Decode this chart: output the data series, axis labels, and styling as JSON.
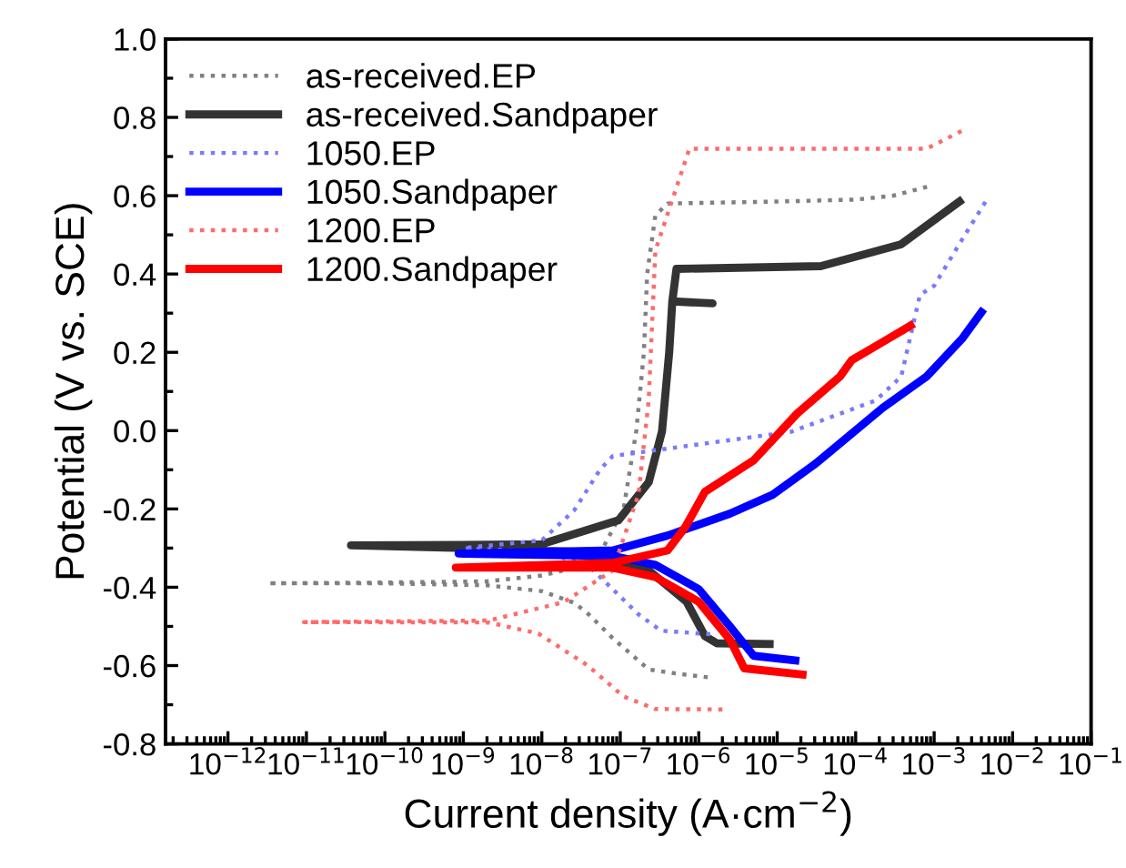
{
  "chart_data": {
    "type": "line",
    "xlabel": "Current density (A·cm$^{−2}$)",
    "ylabel": "Potential (V vs. SCE)",
    "log": "x",
    "xlim": [
      1.6e-13,
      0.1
    ],
    "ylim": [
      -0.8,
      1.0
    ],
    "xticks": [
      {
        "value": 1e-12,
        "label": "10$^{−12}$"
      },
      {
        "value": 1e-11,
        "label": "10$^{−11}$"
      },
      {
        "value": 1e-10,
        "label": "10$^{−10}$"
      },
      {
        "value": 1e-09,
        "label": "10$^{−9}$"
      },
      {
        "value": 1e-08,
        "label": "10$^{−8}$"
      },
      {
        "value": 1e-07,
        "label": "10$^{−7}$"
      },
      {
        "value": 1e-06,
        "label": "10$^{−6}$"
      },
      {
        "value": 1e-05,
        "label": "10$^{−5}$"
      },
      {
        "value": 0.0001,
        "label": "10$^{−4}$"
      },
      {
        "value": 0.001,
        "label": "10$^{−3}$"
      },
      {
        "value": 0.01,
        "label": "10$^{−2}$"
      },
      {
        "value": 0.1,
        "label": "10$^{−1}$"
      }
    ],
    "yticks": [
      {
        "value": -0.8,
        "label": "-0.8"
      },
      {
        "value": -0.6,
        "label": "-0.6"
      },
      {
        "value": -0.4,
        "label": "-0.4"
      },
      {
        "value": -0.2,
        "label": "-0.2"
      },
      {
        "value": 0.0,
        "label": "0.0"
      },
      {
        "value": 0.2,
        "label": "0.2"
      },
      {
        "value": 0.4,
        "label": "0.4"
      },
      {
        "value": 0.6,
        "label": "0.6"
      },
      {
        "value": 0.8,
        "label": "0.8"
      },
      {
        "value": 1.0,
        "label": "1.0"
      }
    ],
    "grid": false,
    "legend": "top left",
    "marker": "none",
    "series": [
      {
        "name": "as-received.EP",
        "color": "#808080",
        "line_style": "dotted",
        "x": [
          1.3e-06,
          5e-07,
          2.3e-07,
          8e-08,
          4e-08,
          2.6e-08,
          1e-08,
          2e-09,
          1e-10,
          3.2e-12,
          1e-10,
          2e-09,
          1e-08,
          2.6e-08,
          6e-08,
          1.1e-07,
          1.6e-07,
          2e-07,
          2.2e-07,
          2.8e-07,
          4e-07,
          1e-05,
          0.0001,
          0.0003,
          0.0009
        ],
        "values": [
          -0.63,
          -0.62,
          -0.61,
          -0.53,
          -0.47,
          -0.44,
          -0.41,
          -0.395,
          -0.39,
          -0.39,
          -0.388,
          -0.385,
          -0.37,
          -0.35,
          -0.3,
          -0.2,
          0.0,
          0.2,
          0.4,
          0.55,
          0.58,
          0.585,
          0.59,
          0.6,
          0.625
        ]
      },
      {
        "name": "as-received.Sandpaper",
        "color": "#333333",
        "line_style": "solid",
        "x": [
          8e-06,
          1.7e-06,
          1.2e-06,
          7e-07,
          2.3e-07,
          3e-08,
          1e-09,
          3.7e-11,
          1e-09,
          1e-08,
          9.5e-08,
          2.3e-07,
          3.4e-07,
          4.2e-07,
          4.6e-07,
          1.5e-06,
          4.6e-07,
          5.2e-07,
          3.6e-05,
          0.00038,
          0.0021
        ],
        "values": [
          -0.545,
          -0.543,
          -0.525,
          -0.437,
          -0.357,
          -0.31,
          -0.3,
          -0.293,
          -0.292,
          -0.29,
          -0.229,
          -0.132,
          -0.002,
          0.2,
          0.33,
          0.325,
          0.33,
          0.413,
          0.42,
          0.476,
          0.585
        ]
      },
      {
        "name": "1050.EP",
        "color": "#7a7aff",
        "line_style": "dotted",
        "x": [
          1.4e-06,
          3.3e-07,
          1.7e-07,
          8e-08,
          3.8e-08,
          1e-08,
          1e-09,
          1e-08,
          2.6e-08,
          5.5e-08,
          8e-08,
          1e-06,
          1.5e-05,
          0.00018,
          0.00038,
          0.00066,
          0.001,
          0.0023,
          0.0047
        ],
        "values": [
          -0.52,
          -0.511,
          -0.469,
          -0.405,
          -0.342,
          -0.31,
          -0.3,
          -0.28,
          -0.203,
          -0.1,
          -0.065,
          -0.035,
          -0.003,
          0.077,
          0.138,
          0.347,
          0.37,
          0.49,
          0.59
        ]
      },
      {
        "name": "1050.Sandpaper",
        "color": "#0000ff",
        "line_style": "solid",
        "x": [
          1.7e-05,
          5e-06,
          2.5e-06,
          1e-06,
          2.8e-07,
          8e-08,
          8.7e-10,
          8e-08,
          4e-07,
          2.5e-06,
          8.7e-06,
          3.1e-05,
          0.00022,
          0.0008,
          0.0023,
          0.004
        ],
        "values": [
          -0.587,
          -0.575,
          -0.5,
          -0.405,
          -0.343,
          -0.32,
          -0.314,
          -0.306,
          -0.268,
          -0.212,
          -0.164,
          -0.084,
          0.058,
          0.138,
          0.236,
          0.302
        ]
      },
      {
        "name": "1200.EP",
        "color": "#ff6b6b",
        "line_style": "dotted",
        "x": [
          2e-06,
          2.8e-07,
          1.1e-07,
          3.8e-08,
          9e-09,
          2.1e-09,
          9.3e-12,
          2.1e-09,
          1.9e-08,
          8e-08,
          1.7e-07,
          2.3e-07,
          2.8e-07,
          7.6e-07,
          0.0008,
          0.0025
        ],
        "values": [
          -0.712,
          -0.711,
          -0.679,
          -0.599,
          -0.518,
          -0.49,
          -0.489,
          -0.485,
          -0.438,
          -0.357,
          -0.164,
          0.077,
          0.46,
          0.72,
          0.72,
          0.77
        ]
      },
      {
        "name": "1200.Sandpaper",
        "color": "#ff0000",
        "line_style": "solid",
        "x": [
          2.1e-05,
          3.8e-06,
          2.5e-06,
          1e-06,
          2.8e-07,
          8e-08,
          8e-10,
          8e-08,
          4e-07,
          6.8e-07,
          1.2e-06,
          5e-06,
          1.8e-05,
          6.3e-05,
          8.9e-05,
          0.00022,
          0.0005
        ],
        "values": [
          -0.623,
          -0.607,
          -0.534,
          -0.437,
          -0.374,
          -0.35,
          -0.35,
          -0.338,
          -0.306,
          -0.245,
          -0.156,
          -0.076,
          0.044,
          0.138,
          0.18,
          0.226,
          0.268
        ]
      }
    ]
  }
}
